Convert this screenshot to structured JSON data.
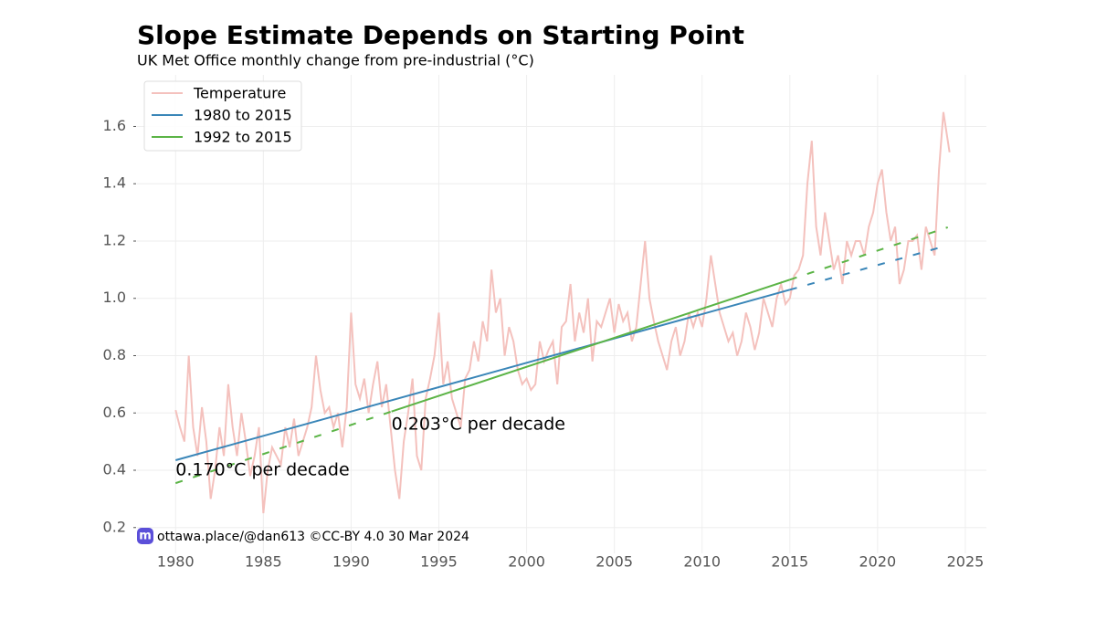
{
  "chart_data": {
    "type": "line",
    "title": "Slope Estimate Depends on Starting Point",
    "subtitle": "UK Met Office monthly change from pre-industrial (°C)",
    "credit": "ottawa.place/@dan613 ©CC-BY 4.0  30 Mar 2024",
    "xlim": [
      1977.8,
      2026.2
    ],
    "ylim": [
      0.11,
      1.78
    ],
    "xticks": [
      1980,
      1985,
      1990,
      1995,
      2000,
      2005,
      2010,
      2015,
      2020,
      2025
    ],
    "yticks": [
      0.2,
      0.4,
      0.6,
      0.8,
      {
        "value": 1,
        "label": "1.0"
      },
      1.2,
      1.4,
      1.6
    ],
    "grid": true,
    "legend": "upper left",
    "annotations": [
      {
        "text": "0.203°C per decade",
        "x": 1992.3,
        "y": 0.56
      },
      {
        "text": "0.170°C per decade",
        "x": 1980,
        "y": 0.4
      }
    ],
    "series": [
      {
        "name": "Temperature",
        "color": "#f4c1bd",
        "x": [
          1980,
          1980.25,
          1980.5,
          1980.75,
          1981,
          1981.25,
          1981.5,
          1981.75,
          1982,
          1982.25,
          1982.5,
          1982.75,
          1983,
          1983.25,
          1983.5,
          1983.75,
          1984,
          1984.25,
          1984.5,
          1984.75,
          1985,
          1985.25,
          1985.5,
          1985.75,
          1986,
          1986.25,
          1986.5,
          1986.75,
          1987,
          1987.25,
          1987.5,
          1987.75,
          1988,
          1988.25,
          1988.5,
          1988.75,
          1989,
          1989.25,
          1989.5,
          1989.75,
          1990,
          1990.25,
          1990.5,
          1990.75,
          1991,
          1991.25,
          1991.5,
          1991.75,
          1992,
          1992.25,
          1992.5,
          1992.75,
          1993,
          1993.25,
          1993.5,
          1993.75,
          1994,
          1994.25,
          1994.5,
          1994.75,
          1995,
          1995.25,
          1995.5,
          1995.75,
          1996,
          1996.25,
          1996.5,
          1996.75,
          1997,
          1997.25,
          1997.5,
          1997.75,
          1998,
          1998.25,
          1998.5,
          1998.75,
          1999,
          1999.25,
          1999.5,
          1999.75,
          2000,
          2000.25,
          2000.5,
          2000.75,
          2001,
          2001.25,
          2001.5,
          2001.75,
          2002,
          2002.25,
          2002.5,
          2002.75,
          2003,
          2003.25,
          2003.5,
          2003.75,
          2004,
          2004.25,
          2004.5,
          2004.75,
          2005,
          2005.25,
          2005.5,
          2005.75,
          2006,
          2006.25,
          2006.5,
          2006.75,
          2007,
          2007.25,
          2007.5,
          2007.75,
          2008,
          2008.25,
          2008.5,
          2008.75,
          2009,
          2009.25,
          2009.5,
          2009.75,
          2010,
          2010.25,
          2010.5,
          2010.75,
          2011,
          2011.25,
          2011.5,
          2011.75,
          2012,
          2012.25,
          2012.5,
          2012.75,
          2013,
          2013.25,
          2013.5,
          2013.75,
          2014,
          2014.25,
          2014.5,
          2014.75,
          2015,
          2015.25,
          2015.5,
          2015.75,
          2016,
          2016.25,
          2016.5,
          2016.75,
          2017,
          2017.25,
          2017.5,
          2017.75,
          2018,
          2018.25,
          2018.5,
          2018.75,
          2019,
          2019.25,
          2019.5,
          2019.75,
          2020,
          2020.25,
          2020.5,
          2020.75,
          2021,
          2021.25,
          2021.5,
          2021.75,
          2022,
          2022.25,
          2022.5,
          2022.75,
          2023,
          2023.25,
          2023.5,
          2023.75,
          2024.1
        ],
        "values": [
          0.61,
          0.55,
          0.5,
          0.8,
          0.55,
          0.45,
          0.62,
          0.5,
          0.3,
          0.4,
          0.55,
          0.45,
          0.7,
          0.55,
          0.45,
          0.6,
          0.5,
          0.38,
          0.45,
          0.55,
          0.25,
          0.4,
          0.48,
          0.45,
          0.42,
          0.55,
          0.48,
          0.58,
          0.45,
          0.5,
          0.55,
          0.62,
          0.8,
          0.68,
          0.6,
          0.62,
          0.55,
          0.6,
          0.48,
          0.62,
          0.95,
          0.7,
          0.65,
          0.72,
          0.6,
          0.7,
          0.78,
          0.62,
          0.7,
          0.55,
          0.4,
          0.3,
          0.5,
          0.6,
          0.72,
          0.45,
          0.4,
          0.65,
          0.72,
          0.8,
          0.95,
          0.7,
          0.78,
          0.65,
          0.6,
          0.55,
          0.72,
          0.75,
          0.85,
          0.78,
          0.92,
          0.85,
          1.1,
          0.95,
          1.0,
          0.8,
          0.9,
          0.85,
          0.75,
          0.7,
          0.72,
          0.68,
          0.7,
          0.85,
          0.78,
          0.82,
          0.85,
          0.7,
          0.9,
          0.92,
          1.05,
          0.85,
          0.95,
          0.88,
          1.0,
          0.78,
          0.92,
          0.9,
          0.95,
          1.0,
          0.88,
          0.98,
          0.92,
          0.95,
          0.85,
          0.9,
          1.05,
          1.2,
          1.0,
          0.92,
          0.85,
          0.8,
          0.75,
          0.85,
          0.9,
          0.8,
          0.85,
          0.95,
          0.9,
          0.95,
          0.9,
          1.0,
          1.15,
          1.05,
          0.95,
          0.9,
          0.85,
          0.88,
          0.8,
          0.85,
          0.95,
          0.9,
          0.82,
          0.88,
          1.0,
          0.95,
          0.9,
          1.0,
          1.05,
          0.98,
          1.0,
          1.08,
          1.1,
          1.15,
          1.4,
          1.55,
          1.25,
          1.15,
          1.3,
          1.2,
          1.1,
          1.15,
          1.05,
          1.2,
          1.15,
          1.2,
          1.2,
          1.15,
          1.25,
          1.3,
          1.4,
          1.45,
          1.3,
          1.2,
          1.25,
          1.05,
          1.1,
          1.2,
          1.2,
          1.22,
          1.1,
          1.25,
          1.2,
          1.15,
          1.45,
          1.65,
          1.51
        ]
      },
      {
        "name": "1980 to 2015",
        "color": "#3a86b8",
        "x": [
          1980,
          2015
        ],
        "values": [
          0.435,
          1.03
        ],
        "dashed": [
          {
            "x": [
              2015,
              2024
            ],
            "values": [
              1.03,
              1.185
            ]
          }
        ]
      },
      {
        "name": "1992 to 2015",
        "color": "#5bb446",
        "x": [
          1992.3,
          2015
        ],
        "values": [
          0.605,
          1.065
        ],
        "dashed": [
          {
            "x": [
              1980,
              1992.3
            ],
            "values": [
              0.355,
              0.605
            ]
          },
          {
            "x": [
              2015,
              2024
            ],
            "values": [
              1.065,
              1.248
            ]
          }
        ]
      }
    ]
  }
}
